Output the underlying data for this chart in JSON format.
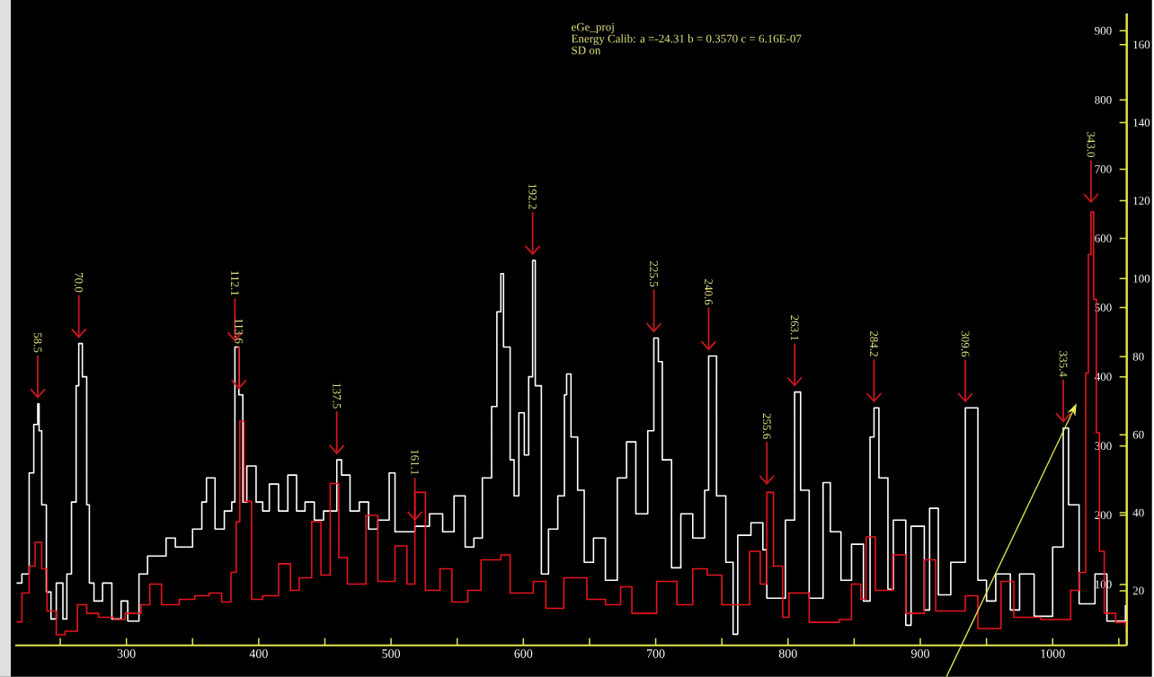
{
  "chart_data": {
    "type": "step",
    "title": "eGe_proj",
    "subtitle": "Energy Calib: a =-24.31 b = 0.3570 c = 6.16E-07",
    "xlim": [
      216,
      1056
    ],
    "ylim": [
      12,
      925
    ],
    "y2lim": [
      6,
      168
    ],
    "xticks": [
      {
        "value": 250,
        "label": null
      },
      300,
      {
        "value": 350,
        "label": null
      },
      400,
      {
        "value": 450,
        "label": null
      },
      500,
      {
        "value": 550,
        "label": null
      },
      600,
      {
        "value": 650,
        "label": null
      },
      700,
      {
        "value": 750,
        "label": null
      },
      800,
      {
        "value": 850,
        "label": null
      },
      900,
      {
        "value": 950,
        "label": null
      },
      1000,
      {
        "value": 1050,
        "label": null
      }
    ],
    "yticks": [
      100,
      200,
      300,
      400,
      500,
      600,
      700,
      800,
      900
    ],
    "y2ticks": [
      20,
      40,
      60,
      80,
      100,
      120,
      140,
      160
    ],
    "marker": "none",
    "line_style": "solid",
    "series": [
      {
        "color": "#ffffff",
        "x": [
          217,
          221,
          226.5,
          230,
          233,
          234,
          236,
          239.5,
          243,
          247,
          252,
          255,
          258.5,
          262,
          264,
          266.7,
          270,
          272,
          275.5,
          282,
          289,
          296,
          301,
          309.5,
          316,
          323,
          330,
          337,
          343.5,
          350,
          357,
          360.5,
          367,
          374,
          379.6,
          382,
          385,
          388,
          391,
          398,
          403,
          408,
          415,
          422,
          428.6,
          435,
          442,
          449,
          459,
          462.6,
          469,
          476,
          483,
          490,
          498.6,
          503,
          518,
          529,
          539,
          547.6,
          556,
          562.6,
          569,
          576,
          580,
          583,
          585,
          590,
          593,
          596.6,
          600.7,
          604,
          607,
          609,
          613.6,
          619,
          626,
          631,
          632.7,
          636,
          641,
          646,
          653,
          662,
          671,
          678,
          685,
          694,
          698.6,
          702,
          705,
          712,
          719,
          728,
          737,
          740,
          746,
          753,
          758.5,
          762,
          772,
          781,
          784,
          798,
          805,
          809.5,
          816,
          826.5,
          832,
          840,
          848,
          857,
          862,
          865,
          868.7,
          875.5,
          879.6,
          889,
          893,
          903,
          907,
          913.6,
          923,
          934,
          943.5,
          950,
          957,
          968,
          975,
          986,
          1000,
          1008,
          1012,
          1020,
          1032,
          1041,
          1055
        ],
        "values": [
          102,
          115,
          261,
          331,
          361,
          322,
          215,
          89,
          50,
          102,
          50,
          115,
          219,
          387,
          448,
          400,
          215,
          102,
          76,
          102,
          50,
          76,
          47,
          115,
          141,
          141,
          167,
          154,
          154,
          180,
          219,
          254,
          180,
          206,
          219,
          443,
          374,
          219,
          271,
          219,
          206,
          245,
          206,
          258,
          206,
          219,
          193,
          206,
          280,
          258,
          206,
          219,
          180,
          193,
          261,
          176,
          184,
          202,
          176,
          228,
          154,
          167,
          254,
          357,
          494,
          549,
          443,
          280,
          228,
          348,
          287,
          400,
          568,
          387,
          115,
          180,
          228,
          374,
          404,
          313,
          236,
          132,
          167,
          106,
          254,
          306,
          202,
          322,
          456,
          422,
          280,
          124,
          202,
          167,
          236,
          430,
          228,
          132,
          28,
          171,
          189,
          150,
          80,
          193,
          378,
          236,
          80,
          247,
          176,
          106,
          158,
          76,
          313,
          355,
          254,
          93,
          193,
          41,
          184,
          63,
          210,
          85,
          132,
          355,
          106,
          76,
          115,
          63,
          115,
          54,
          154,
          326,
          215,
          72,
          115,
          47,
          70
        ]
      },
      {
        "color": "#e8141e",
        "axis": "y2",
        "x": [
          217,
          221,
          226.5,
          231,
          236,
          240,
          247,
          253.7,
          263,
          270,
          279,
          290.5,
          299,
          311,
          317.7,
          326.5,
          340,
          351.7,
          362.6,
          372,
          379,
          383,
          385.7,
          389,
          394.6,
          403,
          415,
          424,
          430.6,
          440,
          447,
          454,
          460.5,
          467,
          481,
          490,
          503,
          512,
          518,
          526,
          537,
          546,
          558,
          568,
          583,
          590,
          607.5,
          617,
          630.6,
          648,
          662,
          673.5,
          682,
          700.7,
          716,
          728,
          739,
          750,
          771,
          779,
          784,
          789,
          796,
          800.7,
          816,
          838.8,
          848,
          855,
          859,
          866,
          879,
          889,
          903,
          911.6,
          934,
          943.5,
          961,
          970.7,
          991,
          1013.6,
          1020,
          1025,
          1027,
          1029,
          1031,
          1033,
          1035.4,
          1039,
          1047.6,
          1055
        ],
        "values": [
          12,
          19.4,
          26.3,
          32.4,
          25.6,
          14.8,
          8.7,
          9.6,
          16.4,
          14.2,
          13.2,
          12.6,
          14.2,
          16.4,
          21.7,
          16.4,
          17.8,
          18.7,
          19.4,
          17.1,
          24.7,
          37.7,
          63.5,
          42.9,
          17.8,
          18.7,
          26.9,
          20.1,
          23.3,
          37.7,
          24,
          47.5,
          28.5,
          21.7,
          39.3,
          22.4,
          31.5,
          21.7,
          45.2,
          20.1,
          25.6,
          17.1,
          20.1,
          27.9,
          29.2,
          19.4,
          22.4,
          15.5,
          23.3,
          17.8,
          16.4,
          21,
          14.2,
          22.4,
          16.4,
          25.6,
          24,
          16.4,
          30.1,
          21.7,
          45.2,
          26.3,
          13.2,
          19.4,
          11.9,
          12.6,
          21.7,
          17.8,
          33.8,
          20.1,
          29.2,
          14.2,
          27.9,
          14.8,
          18.7,
          10.3,
          22.4,
          13.2,
          12.6,
          20.1,
          24.7,
          75.8,
          106.2,
          117.1,
          94.7,
          60.5,
          30.1,
          14.2,
          11.9,
          11
        ]
      }
    ],
    "annotations": [
      "SD on",
      {
        "text": "58.5",
        "x": 233,
        "y": 361
      },
      {
        "text": "70.0",
        "x": 264,
        "y": 448
      },
      {
        "text": "112.1",
        "x": 382,
        "y": 443
      },
      {
        "text": "113.6",
        "x": 385,
        "y": 374
      },
      {
        "text": "137.5",
        "x": 459,
        "y": 280
      },
      {
        "text": "161.1",
        "x": 518,
        "y": 184
      },
      {
        "text": "192.2",
        "x": 607,
        "y": 568
      },
      {
        "text": "225.5",
        "x": 698.6,
        "y": 456
      },
      {
        "text": "240.6",
        "x": 740,
        "y": 430
      },
      {
        "text": "255.6",
        "x": 784,
        "y": 236
      },
      {
        "text": "263.1",
        "x": 805,
        "y": 378
      },
      {
        "text": "284.2",
        "x": 865,
        "y": 355
      },
      {
        "text": "309.6",
        "x": 934,
        "y": 355
      },
      {
        "text": "335.4",
        "x": 1008,
        "y": 326
      },
      {
        "text": "343.0",
        "x": 1029,
        "y": 643
      }
    ]
  }
}
